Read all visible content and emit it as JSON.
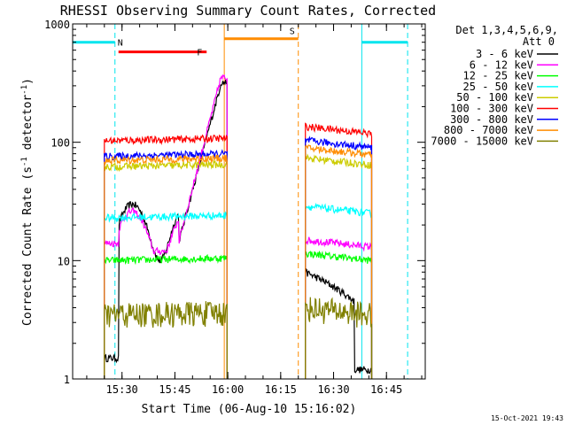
{
  "chart_data": {
    "type": "line",
    "title": "RHESSI Observing Summary Count Rates, Corrected",
    "xlabel": "Start Time (06-Aug-10 15:16:02)",
    "ylabel_main": "Corrected Count Rate (s",
    "ylabel_sup1": "-1",
    "ylabel_mid": " detector",
    "ylabel_sup2": "-1",
    "ylabel_end": ")",
    "y_scale": "log",
    "ylim": [
      1,
      1000
    ],
    "xlim_minutes_after_1516": [
      0,
      100
    ],
    "ytick_labels": [
      "1",
      "10",
      "100",
      "1000"
    ],
    "xtick_labels": [
      "15:30",
      "15:45",
      "16:00",
      "16:15",
      "16:30",
      "16:45"
    ],
    "xticks_minutes": [
      14,
      29,
      44,
      59,
      74,
      89
    ],
    "legend_header": [
      "Det 1,3,4,5,6,9,",
      "Att 0"
    ],
    "legend_placement": "right",
    "timestamp": "15-Oct-2021 19:43",
    "flags": [
      {
        "label": "N",
        "color": "#00e5ee",
        "level": 700,
        "segments": [
          [
            0,
            12
          ],
          [
            82,
            95
          ]
        ],
        "dashed_lines": [
          12,
          95
        ],
        "solid_lines": [
          82
        ]
      },
      {
        "label": "F",
        "color": "#ff0000",
        "level": 580,
        "segments": [
          [
            13,
            38
          ]
        ],
        "dashed_lines": [],
        "solid_lines": []
      },
      {
        "label": "S",
        "color": "#ff8c00",
        "level": 750,
        "segments": [
          [
            43,
            64
          ]
        ],
        "dashed_lines": [
          64
        ],
        "solid_lines": [
          43
        ]
      }
    ],
    "gap": [
      44,
      66
    ],
    "series": [
      {
        "name": "3 - 6 keV",
        "color": "#000000",
        "kind": "flare_low",
        "pre_flare": 2.0,
        "post_flare": 6.0
      },
      {
        "name": "6 - 12 keV",
        "color": "#ff00ff",
        "kind": "flare",
        "pre_flare": 14.0,
        "post_flare": 13.0
      },
      {
        "name": "12 - 25 keV",
        "color": "#00ff00",
        "kind": "flat",
        "pre_flare": 10.0,
        "post_flare": 10.0
      },
      {
        "name": "25 - 50 keV",
        "color": "#00ffff",
        "kind": "flat",
        "pre_flare": 23.0,
        "post_flare": 25.0
      },
      {
        "name": "50 - 100 keV",
        "color": "#cccc00",
        "kind": "flat",
        "pre_flare": 62.0,
        "post_flare": 64.0
      },
      {
        "name": "100 - 300 keV",
        "color": "#ff0000",
        "kind": "flat",
        "pre_flare": 103.0,
        "post_flare": 118.0
      },
      {
        "name": "300 - 800 keV",
        "color": "#0000ff",
        "kind": "flat",
        "pre_flare": 76.0,
        "post_flare": 90.0
      },
      {
        "name": "800 - 7000 keV",
        "color": "#ff8c00",
        "kind": "flat",
        "pre_flare": 70.0,
        "post_flare": 78.0
      },
      {
        "name": "7000 - 15000 keV",
        "color": "#808000",
        "kind": "flat",
        "pre_flare": 3.5,
        "post_flare": 3.5
      }
    ]
  }
}
